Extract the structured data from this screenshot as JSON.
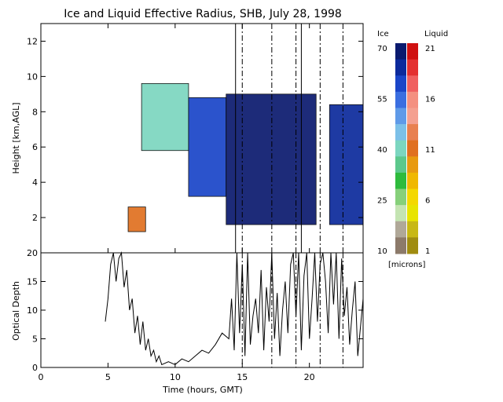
{
  "chart_data": [
    {
      "type": "heatmap",
      "title": "Ice and Liquid Effective Radius, SHB, July 28, 1998",
      "ylabel": "Height [km,AGL]",
      "xlim": [
        0,
        24
      ],
      "ylim": [
        0,
        13
      ],
      "xticks": [
        "0",
        "5",
        "10",
        "15",
        "20"
      ],
      "yticks": [
        "2",
        "4",
        "6",
        "8",
        "10",
        "12"
      ],
      "vertical_dashed_lines_hours": [
        15.0,
        17.2,
        19.0,
        20.8,
        22.5
      ],
      "vertical_solid_lines_hours": [
        14.5,
        19.4
      ],
      "cloud_regions": [
        {
          "phase": "ice",
          "x_start": 7.5,
          "x_end": 11.0,
          "y_bottom": 5.8,
          "y_top": 9.6,
          "radius_microns": 40
        },
        {
          "phase": "ice",
          "x_start": 11.0,
          "x_end": 13.8,
          "y_bottom": 3.2,
          "y_top": 8.8,
          "radius_microns": 62
        },
        {
          "phase": "ice",
          "x_start": 13.8,
          "x_end": 20.5,
          "y_bottom": 1.6,
          "y_top": 9.0,
          "radius_microns": 68
        },
        {
          "phase": "ice",
          "x_start": 21.5,
          "x_end": 24.0,
          "y_bottom": 1.6,
          "y_top": 8.4,
          "radius_microns": 65
        },
        {
          "phase": "liquid",
          "x_start": 6.5,
          "x_end": 7.8,
          "y_bottom": 1.2,
          "y_top": 2.6,
          "radius_microns": 11
        }
      ],
      "colorbar": {
        "title_ice": "Ice",
        "title_liquid": "Liquid",
        "ice_ticks": [
          "70",
          "55",
          "40",
          "25",
          "10"
        ],
        "liquid_ticks": [
          "21",
          "16",
          "11",
          "6",
          "1"
        ],
        "unit": "[microns]",
        "ice_colors": [
          "#0a1a6e",
          "#0c2a9c",
          "#1a45c8",
          "#3a6ee0",
          "#5f9ae8",
          "#7cc0e8",
          "#7cd6c0",
          "#5cc88c",
          "#2ebb3c",
          "#86d07a",
          "#c4e4b2",
          "#b0a898",
          "#8c7a6a"
        ],
        "liquid_colors": [
          "#d01010",
          "#e43030",
          "#f06060",
          "#f49080",
          "#f4a090",
          "#e88050",
          "#e07020",
          "#e89a10",
          "#f0b800",
          "#f4d800",
          "#e8e400",
          "#c8b814",
          "#a08c10"
        ]
      }
    },
    {
      "type": "line",
      "xlabel": "Time (hours, GMT)",
      "ylabel": "Optical Depth",
      "xlim": [
        0,
        24
      ],
      "ylim": [
        0,
        20
      ],
      "xticks": [
        "0",
        "5",
        "10",
        "15",
        "20"
      ],
      "yticks": [
        "0",
        "5",
        "10",
        "15",
        "20"
      ],
      "series": [
        {
          "x": [
            4.8,
            5.0,
            5.2,
            5.4,
            5.6,
            5.8,
            6.0,
            6.2,
            6.4,
            6.6,
            6.8,
            7.0,
            7.2,
            7.4,
            7.6,
            7.8,
            8.0,
            8.2,
            8.4,
            8.6,
            8.8,
            9.0,
            9.5,
            10.0,
            10.5,
            11.0,
            11.5,
            12.0,
            12.5,
            13.0,
            13.5,
            14.0,
            14.2,
            14.4,
            14.6,
            14.8,
            15.0,
            15.2,
            15.4,
            15.6,
            15.8,
            16.0,
            16.2,
            16.4,
            16.6,
            16.8,
            17.0,
            17.2,
            17.4,
            17.6,
            17.8,
            18.0,
            18.2,
            18.4,
            18.6,
            18.8,
            19.0,
            19.2,
            19.4,
            19.6,
            19.8,
            20.0,
            20.2,
            20.4,
            20.6,
            20.8,
            21.0,
            21.2,
            21.4,
            21.6,
            21.8,
            22.0,
            22.2,
            22.4,
            22.6,
            22.8,
            23.0,
            23.2,
            23.4,
            23.6,
            23.8,
            24.0
          ],
          "y": [
            8,
            12,
            18,
            20,
            15,
            19,
            20,
            14,
            17,
            10,
            12,
            6,
            9,
            4,
            8,
            3,
            5,
            2,
            3,
            1,
            2,
            0.5,
            1,
            0.5,
            1.5,
            1,
            2,
            3,
            2.5,
            4,
            6,
            5,
            12,
            3,
            20,
            6,
            18,
            2,
            20,
            4,
            9,
            12,
            6,
            17,
            3,
            14,
            8,
            20,
            5,
            13,
            2,
            10,
            15,
            6,
            18,
            20,
            9,
            20,
            3,
            16,
            20,
            5,
            12,
            20,
            8,
            18,
            20,
            15,
            6,
            20,
            11,
            20,
            5,
            19,
            9,
            14,
            4,
            10,
            15,
            2,
            7,
            12
          ]
        }
      ]
    }
  ]
}
